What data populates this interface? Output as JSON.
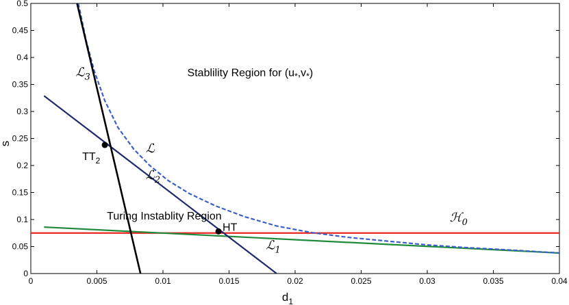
{
  "chart_data": {
    "type": "line",
    "title": "",
    "xlabel": "d",
    "xlabel_sub": "1",
    "ylabel": "s",
    "xlim": [
      0,
      0.04
    ],
    "ylim": [
      0,
      0.5
    ],
    "xticks": [
      0,
      0.005,
      0.01,
      0.015,
      0.02,
      0.025,
      0.03,
      0.035,
      0.04
    ],
    "xtick_labels": [
      "0",
      "0.005",
      "0.01",
      "0.015",
      "0.02",
      "0.025",
      "0.03",
      "0.035",
      "0.04"
    ],
    "yticks": [
      0,
      0.05,
      0.1,
      0.15,
      0.2,
      0.25,
      0.3,
      0.35,
      0.4,
      0.45,
      0.5
    ],
    "ytick_labels": [
      "0",
      "0.05",
      "0.1",
      "0.15",
      "0.2",
      "0.25",
      "0.3",
      "0.35",
      "0.4",
      "0.45",
      "0.5"
    ],
    "grid": false,
    "series": [
      {
        "name": "L",
        "label": "ℒ",
        "color": "#3a5fc8",
        "style": "dashed",
        "x": [
          0.0036,
          0.0042,
          0.0048,
          0.0056,
          0.0066,
          0.0078,
          0.009,
          0.0104,
          0.012,
          0.014,
          0.0162,
          0.0186,
          0.0212,
          0.024,
          0.027,
          0.03,
          0.033,
          0.036,
          0.04
        ],
        "y": [
          0.5,
          0.43,
          0.375,
          0.32,
          0.27,
          0.23,
          0.2,
          0.172,
          0.148,
          0.125,
          0.105,
          0.088,
          0.076,
          0.067,
          0.06,
          0.053,
          0.048,
          0.044,
          0.038
        ]
      },
      {
        "name": "L1",
        "label": "ℒ",
        "label_sub": "1",
        "color": "#1f8a3a",
        "style": "solid",
        "x": [
          0.001,
          0.04
        ],
        "y": [
          0.086,
          0.038
        ]
      },
      {
        "name": "L2",
        "label": "ℒ",
        "label_sub": "2",
        "color": "#1f2a6e",
        "style": "solid",
        "x": [
          0.001,
          0.0186
        ],
        "y": [
          0.329,
          0.0
        ]
      },
      {
        "name": "L3",
        "label": "ℒ",
        "label_sub": "3",
        "color": "#000000",
        "style": "solid",
        "x": [
          0.0035,
          0.0083
        ],
        "y": [
          0.5,
          0.0
        ]
      },
      {
        "name": "H0",
        "label": "ℋ",
        "label_sub": "0",
        "color": "#e8251f",
        "style": "solid",
        "x": [
          0,
          0.04
        ],
        "y": [
          0.075,
          0.075
        ]
      }
    ],
    "points": [
      {
        "name": "TT",
        "label": "TT",
        "label_sub": "2",
        "x": 0.0056,
        "y": 0.238
      },
      {
        "name": "HT",
        "label": "HT",
        "x": 0.0142,
        "y": 0.078
      }
    ],
    "annotations": [
      {
        "id": "stable",
        "text": "Stablility Region for (u",
        "sub1": "*",
        "mid": ",v",
        "sub2": "*",
        "end": ")",
        "x": 0.0166,
        "y": 0.365
      },
      {
        "id": "turing",
        "text": "Turing Instablity Region",
        "x": 0.0101,
        "y": 0.1
      }
    ],
    "curve_labels": [
      {
        "series": "L3",
        "x": 0.0034,
        "y": 0.365
      },
      {
        "series": "L",
        "x": 0.0087,
        "y": 0.224
      },
      {
        "series": "L2",
        "x": 0.0087,
        "y": 0.175
      },
      {
        "series": "L1",
        "x": 0.0178,
        "y": 0.045
      },
      {
        "series": "H0",
        "x": 0.0317,
        "y": 0.096
      }
    ]
  }
}
